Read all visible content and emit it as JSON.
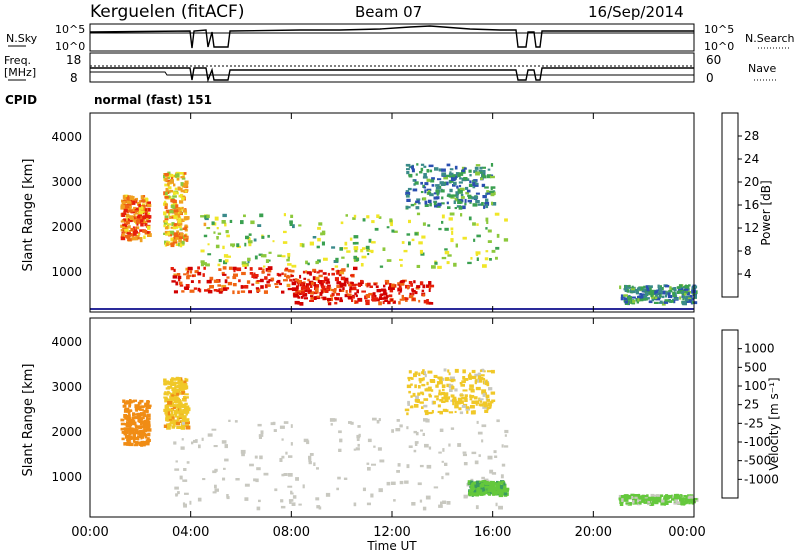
{
  "header": {
    "station": "Kerguelen (fitACF)",
    "beam": "Beam 07",
    "date": "16/Sep/2014"
  },
  "params": {
    "nsky_label": "N.Sky",
    "nsky_ticks": [
      "10^5",
      "10^0"
    ],
    "nsearch_label": "N.Search",
    "nsearch_ticks": [
      "10^5",
      "10^0"
    ],
    "freq_label_1": "Freq.",
    "freq_label_2": "[MHz]",
    "freq_ticks": [
      "18",
      "8"
    ],
    "nave_label": "Nave",
    "nave_ticks": [
      "60",
      "0"
    ],
    "cpid_label": "CPID",
    "cpid_value": "normal (fast) 151"
  },
  "axes": {
    "ylabel": "Slant Range [km]",
    "yticks": [
      "4000",
      "3000",
      "2000",
      "1000"
    ],
    "xticks": [
      "00:00",
      "04:00",
      "08:00",
      "12:00",
      "16:00",
      "20:00",
      "00:00"
    ],
    "xlabel": "Time UT"
  },
  "power_scale": {
    "label": "Power [dB]",
    "ticks": [
      "28",
      "24",
      "20",
      "16",
      "12",
      "8",
      "4"
    ],
    "colors": [
      "#1a1aff",
      "#2a4fb0",
      "#3a8a8a",
      "#3aa050",
      "#8cc83c",
      "#f0e628",
      "#f0a020",
      "#f06414",
      "#e61e0a",
      "#d20000"
    ]
  },
  "velocity_scale": {
    "label": "Velocity [m s⁻¹]",
    "ticks": [
      "1000",
      "500",
      "100",
      "25",
      "-25",
      "-100",
      "-500",
      "-1000"
    ],
    "colors": [
      "#1e32c8",
      "#2a6ab0",
      "#3a9a60",
      "#64c83c",
      "#c8c8c0",
      "#f0c828",
      "#f08c14",
      "#f05014",
      "#e61e0a"
    ]
  },
  "chart_data": [
    {
      "type": "heatmap",
      "title": "Power",
      "xlabel": "Time UT",
      "ylabel": "Slant Range [km]",
      "xlim": [
        0,
        24
      ],
      "ylim": [
        180,
        4600
      ],
      "colorbar": {
        "label": "Power [dB]",
        "range": [
          0,
          32
        ]
      },
      "regions": [
        {
          "t": [
            1.2,
            2.3
          ],
          "r": [
            1800,
            2800
          ],
          "v": 24
        },
        {
          "t": [
            2.9,
            3.8
          ],
          "r": [
            1700,
            3300
          ],
          "v": 20
        },
        {
          "t": [
            3.2,
            10.5
          ],
          "r": [
            650,
            1200
          ],
          "v": 28
        },
        {
          "t": [
            4.2,
            16.5
          ],
          "r": [
            1200,
            2400
          ],
          "v": 14
        },
        {
          "t": [
            8.0,
            13.5
          ],
          "r": [
            400,
            900
          ],
          "v": 30
        },
        {
          "t": [
            12.5,
            16.0
          ],
          "r": [
            2500,
            3500
          ],
          "v": 8
        },
        {
          "t": [
            21.0,
            24.0
          ],
          "r": [
            400,
            800
          ],
          "v": 8
        }
      ]
    },
    {
      "type": "heatmap",
      "title": "Velocity",
      "xlabel": "Time UT",
      "ylabel": "Slant Range [km]",
      "xlim": [
        0,
        24
      ],
      "ylim": [
        180,
        4600
      ],
      "colorbar": {
        "label": "Velocity [m s-1]",
        "range": [
          -1000,
          1000
        ]
      },
      "regions": [
        {
          "t": [
            1.2,
            2.3
          ],
          "r": [
            1800,
            2800
          ],
          "v": -500
        },
        {
          "t": [
            2.9,
            3.8
          ],
          "r": [
            2200,
            3300
          ],
          "v": -300
        },
        {
          "t": [
            3.2,
            16.5
          ],
          "r": [
            400,
            2400
          ],
          "v": 0
        },
        {
          "t": [
            12.5,
            16.0
          ],
          "r": [
            2500,
            3500
          ],
          "v": -200
        },
        {
          "t": [
            15.0,
            16.5
          ],
          "r": [
            700,
            1000
          ],
          "v": 300
        },
        {
          "t": [
            21.0,
            24.0
          ],
          "r": [
            500,
            700
          ],
          "v": 200
        }
      ]
    }
  ]
}
